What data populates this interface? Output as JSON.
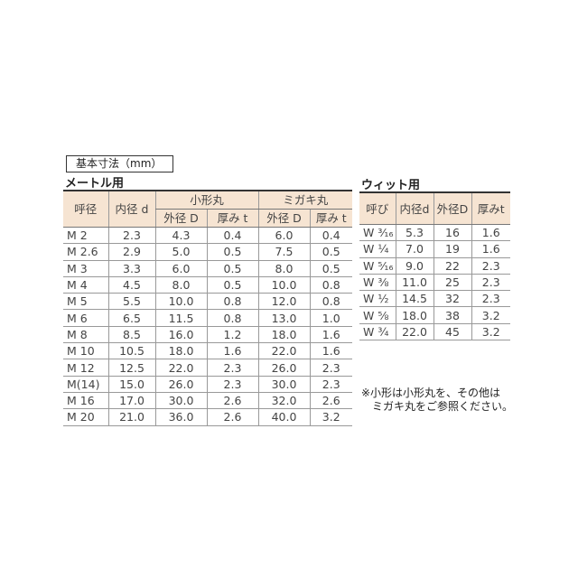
{
  "title": "基本寸法（mm）",
  "metric": {
    "section": "メートル用",
    "headers": {
      "nominal": "呼径",
      "inner": "内径 d",
      "small_group": "小形丸",
      "polished_group": "ミガキ丸",
      "outer": "外径 D",
      "thick": "厚み t"
    },
    "rows": [
      [
        "M  2",
        "2.3",
        "4.3",
        "0.4",
        "6.0",
        "0.4"
      ],
      [
        "M  2.6",
        "2.9",
        "5.0",
        "0.5",
        "7.5",
        "0.5"
      ],
      [
        "M  3",
        "3.3",
        "6.0",
        "0.5",
        "8.0",
        "0.5"
      ],
      [
        "M  4",
        "4.5",
        "8.0",
        "0.5",
        "10.0",
        "0.8"
      ],
      [
        "M  5",
        "5.5",
        "10.0",
        "0.8",
        "12.0",
        "0.8"
      ],
      [
        "M  6",
        "6.5",
        "11.5",
        "0.8",
        "13.0",
        "1.0"
      ],
      [
        "M  8",
        "8.5",
        "16.0",
        "1.2",
        "18.0",
        "1.6"
      ],
      [
        "M  10",
        "10.5",
        "18.0",
        "1.6",
        "22.0",
        "1.6"
      ],
      [
        "M  12",
        "12.5",
        "22.0",
        "2.3",
        "26.0",
        "2.3"
      ],
      [
        "M(14)",
        "15.0",
        "26.0",
        "2.3",
        "30.0",
        "2.3"
      ],
      [
        "M  16",
        "17.0",
        "30.0",
        "2.6",
        "32.0",
        "2.6"
      ],
      [
        "M  20",
        "21.0",
        "36.0",
        "2.6",
        "40.0",
        "3.2"
      ]
    ]
  },
  "whit": {
    "section": "ウィット用",
    "headers": [
      "呼び",
      "内径d",
      "外径D",
      "厚みt"
    ],
    "rows": [
      [
        "W ³⁄₁₆",
        "5.3",
        "16",
        "1.6"
      ],
      [
        "W ¼",
        "7.0",
        "19",
        "1.6"
      ],
      [
        "W ⁵⁄₁₆",
        "9.0",
        "22",
        "2.3"
      ],
      [
        "W ⅜",
        "11.0",
        "25",
        "2.3"
      ],
      [
        "W ½",
        "14.5",
        "32",
        "2.3"
      ],
      [
        "W ⅝",
        "18.0",
        "38",
        "3.2"
      ],
      [
        "W ¾",
        "22.0",
        "45",
        "3.2"
      ]
    ]
  },
  "note": [
    "※小形は小形丸を、その他は",
    "ミガキ丸をご参照ください。"
  ],
  "colors": {
    "header_bg": "#f6e4d2"
  }
}
